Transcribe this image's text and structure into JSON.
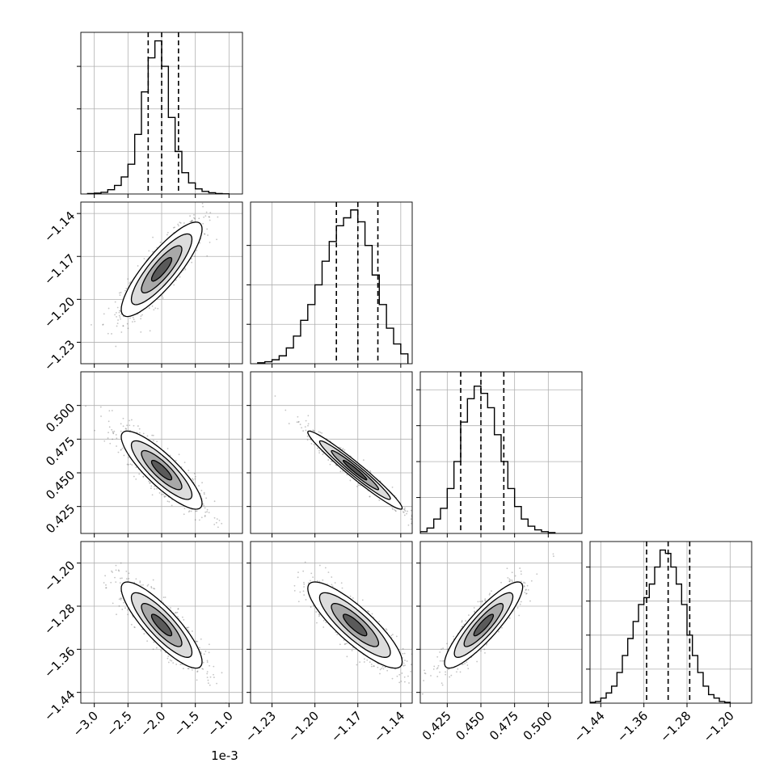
{
  "chart_data": {
    "type": "corner",
    "n_params": 4,
    "grid": true,
    "quantile_lines": "dashed",
    "parameters": [
      {
        "index": 0,
        "offset_label": "1e-3",
        "range": [
          -3.2,
          -0.8
        ],
        "ticks": [
          -3.0,
          -2.5,
          -2.0,
          -1.5,
          -1.0
        ],
        "tick_labels": [
          "−3.0",
          "−2.5",
          "−2.0",
          "−1.5",
          "−1.0"
        ],
        "quantiles": [
          -2.2,
          -2.0,
          -1.75
        ],
        "hist_edges": [
          -3.1,
          -3.0,
          -2.9,
          -2.8,
          -2.7,
          -2.6,
          -2.5,
          -2.4,
          -2.3,
          -2.2,
          -2.1,
          -2.0,
          -1.9,
          -1.8,
          -1.7,
          -1.6,
          -1.5,
          -1.4,
          -1.3,
          -1.2,
          -1.1,
          -1.0
        ],
        "hist_counts": [
          0.5,
          1,
          2,
          5,
          10,
          20,
          35,
          70,
          120,
          160,
          180,
          150,
          90,
          50,
          25,
          13,
          6,
          3,
          1.5,
          0.5,
          0.2
        ],
        "hist_ymax": 190,
        "hist_grid": [
          50,
          100,
          150
        ]
      },
      {
        "index": 1,
        "range": [
          -1.245,
          -1.132
        ],
        "ticks": [
          -1.23,
          -1.2,
          -1.17,
          -1.14
        ],
        "tick_labels": [
          "−1.23",
          "−1.20",
          "−1.17",
          "−1.14"
        ],
        "quantiles": [
          -1.185,
          -1.17,
          -1.156
        ],
        "hist_edges": [
          -1.24,
          -1.235,
          -1.23,
          -1.225,
          -1.22,
          -1.215,
          -1.21,
          -1.205,
          -1.2,
          -1.195,
          -1.19,
          -1.185,
          -1.18,
          -1.175,
          -1.17,
          -1.165,
          -1.16,
          -1.155,
          -1.15,
          -1.145,
          -1.14,
          -1.135
        ],
        "hist_counts": [
          0.5,
          1,
          2,
          4,
          8,
          14,
          22,
          30,
          40,
          52,
          62,
          70,
          74,
          78,
          72,
          60,
          45,
          30,
          18,
          10,
          5
        ],
        "hist_ymax": 82,
        "hist_grid": [
          20,
          40,
          60
        ]
      },
      {
        "index": 2,
        "range": [
          0.405,
          0.525
        ],
        "ticks": [
          0.425,
          0.45,
          0.475,
          0.5
        ],
        "tick_labels": [
          "0.425",
          "0.450",
          "0.475",
          "0.500"
        ],
        "quantiles": [
          0.435,
          0.45,
          0.467
        ],
        "hist_edges": [
          0.405,
          0.41,
          0.415,
          0.42,
          0.425,
          0.43,
          0.435,
          0.44,
          0.445,
          0.45,
          0.455,
          0.46,
          0.465,
          0.47,
          0.475,
          0.48,
          0.485,
          0.49,
          0.495,
          0.5,
          0.505
        ],
        "hist_counts": [
          1,
          3,
          8,
          14,
          25,
          40,
          62,
          75,
          82,
          78,
          70,
          55,
          40,
          25,
          15,
          8,
          4,
          2,
          1,
          0.5
        ],
        "hist_ymax": 90,
        "hist_grid": [
          20,
          40,
          60,
          80
        ]
      },
      {
        "index": 3,
        "range": [
          -1.46,
          -1.16
        ],
        "ticks": [
          -1.44,
          -1.36,
          -1.28,
          -1.2
        ],
        "tick_labels": [
          "−1.44",
          "−1.36",
          "−1.28",
          "−1.20"
        ],
        "quantiles": [
          -1.355,
          -1.315,
          -1.275
        ],
        "hist_edges": [
          -1.46,
          -1.45,
          -1.44,
          -1.43,
          -1.42,
          -1.41,
          -1.4,
          -1.39,
          -1.38,
          -1.37,
          -1.36,
          -1.35,
          -1.34,
          -1.33,
          -1.32,
          -1.31,
          -1.3,
          -1.29,
          -1.28,
          -1.27,
          -1.26,
          -1.25,
          -1.24,
          -1.23,
          -1.22,
          -1.21,
          -1.2
        ],
        "hist_counts": [
          0.5,
          1,
          3,
          6,
          10,
          18,
          28,
          38,
          48,
          58,
          62,
          70,
          80,
          90,
          88,
          80,
          70,
          58,
          40,
          28,
          18,
          10,
          5,
          3,
          1,
          0.5
        ],
        "hist_ymax": 95,
        "hist_grid": [
          20,
          40,
          60,
          80
        ]
      }
    ],
    "pairs": [
      {
        "x": 0,
        "y": 1,
        "center": [
          -2.0,
          -1.179
        ],
        "sigma": [
          0.3,
          0.0165
        ],
        "rho": 0.85
      },
      {
        "x": 0,
        "y": 2,
        "center": [
          -2.0,
          0.452
        ],
        "sigma": [
          0.3,
          0.0145
        ],
        "rho": -0.85
      },
      {
        "x": 1,
        "y": 2,
        "center": [
          -1.172,
          0.452
        ],
        "sigma": [
          0.0165,
          0.0145
        ],
        "rho": -0.97
      },
      {
        "x": 0,
        "y": 3,
        "center": [
          -2.0,
          -1.315
        ],
        "sigma": [
          0.3,
          0.04
        ],
        "rho": -0.85
      },
      {
        "x": 1,
        "y": 3,
        "center": [
          -1.172,
          -1.315
        ],
        "sigma": [
          0.0165,
          0.04
        ],
        "rho": -0.85
      },
      {
        "x": 2,
        "y": 3,
        "center": [
          0.452,
          -1.315
        ],
        "sigma": [
          0.0145,
          0.04
        ],
        "rho": 0.88
      }
    ],
    "contour_levels": [
      0.5,
      1.0,
      1.5,
      2.0
    ]
  }
}
